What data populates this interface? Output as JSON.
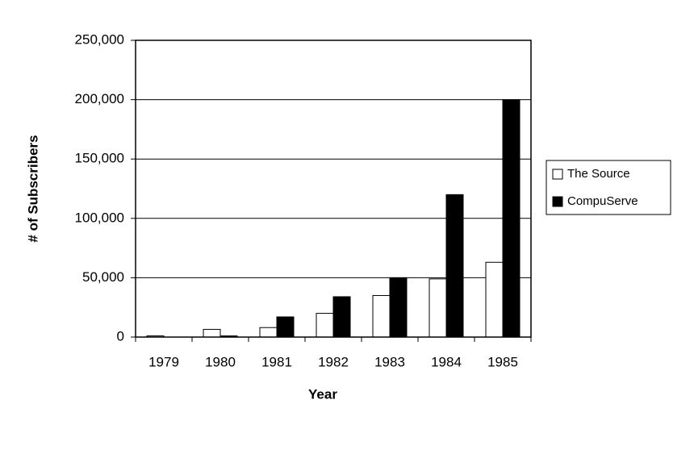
{
  "chart_data": {
    "type": "bar",
    "x_label": "Year",
    "y_label": "# of Subscribers",
    "categories": [
      "1979",
      "1980",
      "1981",
      "1982",
      "1983",
      "1984",
      "1985"
    ],
    "series": [
      {
        "name": "The Source",
        "color": "#ffffff",
        "values": [
          1000,
          6500,
          8000,
          20000,
          35000,
          49000,
          63000
        ]
      },
      {
        "name": "CompuServe",
        "color": "#000000",
        "values": [
          0,
          1000,
          17000,
          34000,
          50000,
          120000,
          200000
        ]
      }
    ],
    "ylim": [
      0,
      250000
    ],
    "yticks": [
      0,
      {
        "value": 50000,
        "label": "50,000"
      },
      {
        "value": 100000,
        "label": "100,000"
      },
      {
        "value": 150000,
        "label": "150,000"
      },
      {
        "value": 200000,
        "label": "200,000"
      },
      {
        "value": 250000,
        "label": "250,000"
      }
    ],
    "grid": true,
    "legend": "right"
  }
}
